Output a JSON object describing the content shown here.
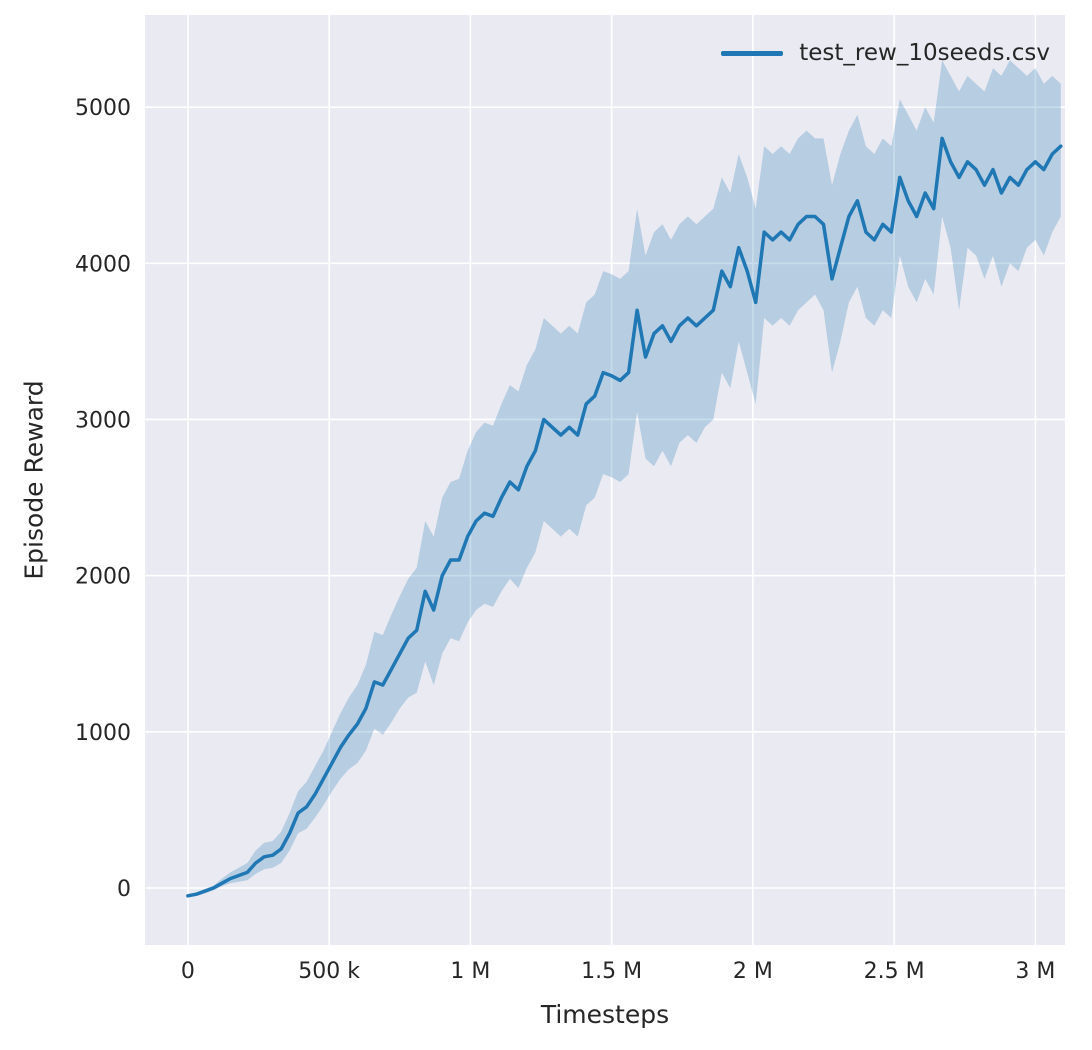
{
  "figure": {
    "background": "#ffffff",
    "plot_background": "#eaeaf2",
    "grid_color": "#ffffff",
    "text_color": "#262626"
  },
  "chart_data": {
    "type": "line",
    "title": "",
    "xlabel": "Timesteps",
    "ylabel": "Episode Reward",
    "legend": [
      "test_rew_10seeds.csv"
    ],
    "legend_position": "upper right",
    "grid": true,
    "line_color": "#1f77b4",
    "band_color": "#1f77b4",
    "band_opacity": 0.25,
    "xlim": [
      -152000,
      3105000
    ],
    "ylim": [
      -365,
      5590
    ],
    "xticks": [
      {
        "value": 0,
        "label": "0"
      },
      {
        "value": 500000,
        "label": "500 k"
      },
      {
        "value": 1000000,
        "label": "1 M"
      },
      {
        "value": 1500000,
        "label": "1.5 M"
      },
      {
        "value": 2000000,
        "label": "2 M"
      },
      {
        "value": 2500000,
        "label": "2.5 M"
      },
      {
        "value": 3000000,
        "label": "3 M"
      }
    ],
    "yticks": [
      {
        "value": 0,
        "label": "0"
      },
      {
        "value": 1000,
        "label": "1000"
      },
      {
        "value": 2000,
        "label": "2000"
      },
      {
        "value": 3000,
        "label": "3000"
      },
      {
        "value": 4000,
        "label": "4000"
      },
      {
        "value": 5000,
        "label": "5000"
      }
    ],
    "x": [
      0,
      30000,
      60000,
      90000,
      120000,
      150000,
      180000,
      210000,
      240000,
      270000,
      300000,
      330000,
      360000,
      390000,
      420000,
      450000,
      480000,
      510000,
      540000,
      570000,
      600000,
      630000,
      660000,
      690000,
      720000,
      750000,
      780000,
      810000,
      840000,
      870000,
      900000,
      930000,
      960000,
      990000,
      1020000,
      1050000,
      1080000,
      1110000,
      1140000,
      1170000,
      1200000,
      1230000,
      1260000,
      1290000,
      1320000,
      1350000,
      1380000,
      1410000,
      1440000,
      1470000,
      1500000,
      1530000,
      1560000,
      1590000,
      1620000,
      1650000,
      1680000,
      1710000,
      1740000,
      1770000,
      1800000,
      1830000,
      1860000,
      1890000,
      1920000,
      1950000,
      1980000,
      2010000,
      2040000,
      2070000,
      2100000,
      2130000,
      2160000,
      2190000,
      2220000,
      2250000,
      2280000,
      2310000,
      2340000,
      2370000,
      2400000,
      2430000,
      2460000,
      2490000,
      2520000,
      2550000,
      2580000,
      2610000,
      2640000,
      2670000,
      2700000,
      2730000,
      2760000,
      2790000,
      2820000,
      2850000,
      2880000,
      2910000,
      2940000,
      2970000,
      3000000,
      3030000,
      3060000,
      3090000
    ],
    "series": [
      {
        "name": "test_rew_10seeds.csv",
        "values": [
          -50,
          -40,
          -20,
          0,
          30,
          60,
          80,
          100,
          160,
          200,
          210,
          250,
          350,
          480,
          520,
          600,
          700,
          800,
          900,
          980,
          1050,
          1150,
          1320,
          1300,
          1400,
          1500,
          1600,
          1650,
          1900,
          1780,
          2000,
          2100,
          2100,
          2250,
          2350,
          2400,
          2380,
          2500,
          2600,
          2550,
          2700,
          2800,
          3000,
          2950,
          2900,
          2950,
          2900,
          3100,
          3150,
          3300,
          3280,
          3250,
          3300,
          3700,
          3400,
          3550,
          3600,
          3500,
          3600,
          3650,
          3600,
          3650,
          3700,
          3950,
          3850,
          4100,
          3950,
          3750,
          4200,
          4150,
          4200,
          4150,
          4250,
          4300,
          4300,
          4250,
          3900,
          4100,
          4300,
          4400,
          4200,
          4150,
          4250,
          4200,
          4550,
          4400,
          4300,
          4450,
          4350,
          4800,
          4650,
          4550,
          4650,
          4600,
          4500,
          4600,
          4450,
          4550,
          4500,
          4600,
          4650,
          4600,
          4700,
          4750
        ]
      }
    ],
    "band_lower": [
      -60,
      -50,
      -35,
      -15,
      10,
      30,
      40,
      50,
      90,
      120,
      130,
      160,
      240,
      350,
      380,
      450,
      530,
      620,
      700,
      760,
      800,
      880,
      1020,
      980,
      1060,
      1150,
      1220,
      1250,
      1450,
      1300,
      1500,
      1600,
      1580,
      1700,
      1780,
      1820,
      1800,
      1900,
      1980,
      1920,
      2050,
      2150,
      2350,
      2300,
      2250,
      2300,
      2250,
      2450,
      2500,
      2650,
      2630,
      2600,
      2650,
      3050,
      2750,
      2700,
      2800,
      2700,
      2850,
      2900,
      2850,
      2950,
      3000,
      3300,
      3200,
      3500,
      3300,
      3100,
      3650,
      3600,
      3650,
      3600,
      3700,
      3750,
      3800,
      3700,
      3300,
      3500,
      3750,
      3850,
      3650,
      3600,
      3700,
      3650,
      4050,
      3850,
      3750,
      3900,
      3800,
      4300,
      4100,
      3700,
      4100,
      4050,
      3900,
      4050,
      3850,
      4000,
      3950,
      4100,
      4150,
      4050,
      4200,
      4300
    ],
    "band_upper": [
      -40,
      -30,
      -5,
      15,
      60,
      100,
      130,
      160,
      240,
      290,
      300,
      360,
      480,
      620,
      680,
      780,
      880,
      1000,
      1120,
      1220,
      1300,
      1430,
      1640,
      1620,
      1750,
      1870,
      1980,
      2050,
      2350,
      2250,
      2500,
      2600,
      2620,
      2800,
      2920,
      2980,
      2960,
      3100,
      3220,
      3180,
      3350,
      3450,
      3650,
      3600,
      3550,
      3600,
      3550,
      3750,
      3800,
      3950,
      3930,
      3900,
      3950,
      4350,
      4050,
      4200,
      4250,
      4150,
      4250,
      4300,
      4250,
      4300,
      4350,
      4550,
      4450,
      4700,
      4550,
      4350,
      4750,
      4700,
      4750,
      4700,
      4800,
      4850,
      4800,
      4800,
      4500,
      4700,
      4850,
      4950,
      4750,
      4700,
      4800,
      4750,
      5050,
      4950,
      4850,
      5000,
      4900,
      5300,
      5200,
      5100,
      5200,
      5150,
      5100,
      5250,
      5200,
      5300,
      5250,
      5200,
      5250,
      5150,
      5200,
      5150
    ]
  }
}
